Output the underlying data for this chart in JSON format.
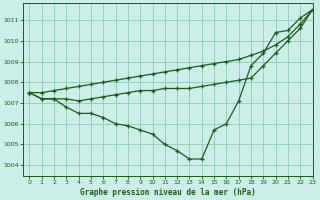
{
  "title": "Graphe pression niveau de la mer (hPa)",
  "background_color": "#cceee8",
  "grid_color": "#99ccbb",
  "line_color": "#1a5c1a",
  "xlim": [
    -0.5,
    23
  ],
  "ylim": [
    1003.5,
    1011.8
  ],
  "yticks": [
    1004,
    1005,
    1006,
    1007,
    1008,
    1009,
    1010,
    1011
  ],
  "xticks": [
    0,
    1,
    2,
    3,
    4,
    5,
    6,
    7,
    8,
    9,
    10,
    11,
    12,
    13,
    14,
    15,
    16,
    17,
    18,
    19,
    20,
    21,
    22,
    23
  ],
  "line_dip": [
    1007.5,
    1007.2,
    1007.2,
    1006.8,
    1006.5,
    1006.5,
    1006.3,
    1006.0,
    1005.9,
    1005.7,
    1005.5,
    1005.0,
    1004.7,
    1004.3,
    1004.3,
    1005.7,
    1006.0,
    1007.1,
    1008.8,
    1009.4,
    1010.4,
    1010.5,
    1011.1,
    1011.5
  ],
  "line_top": [
    1007.5,
    1007.5,
    1007.6,
    1007.7,
    1007.8,
    1007.9,
    1008.0,
    1008.1,
    1008.2,
    1008.3,
    1008.4,
    1008.5,
    1008.6,
    1008.7,
    1008.8,
    1008.9,
    1009.0,
    1009.1,
    1009.3,
    1009.5,
    1009.8,
    1010.2,
    1010.8,
    1011.5
  ],
  "line_mid": [
    1007.5,
    1007.2,
    1007.2,
    1007.2,
    1007.1,
    1007.2,
    1007.3,
    1007.4,
    1007.5,
    1007.6,
    1007.6,
    1007.7,
    1007.7,
    1007.7,
    1007.8,
    1007.9,
    1008.0,
    1008.1,
    1008.2,
    1008.8,
    1009.4,
    1010.0,
    1010.6,
    1011.5
  ]
}
